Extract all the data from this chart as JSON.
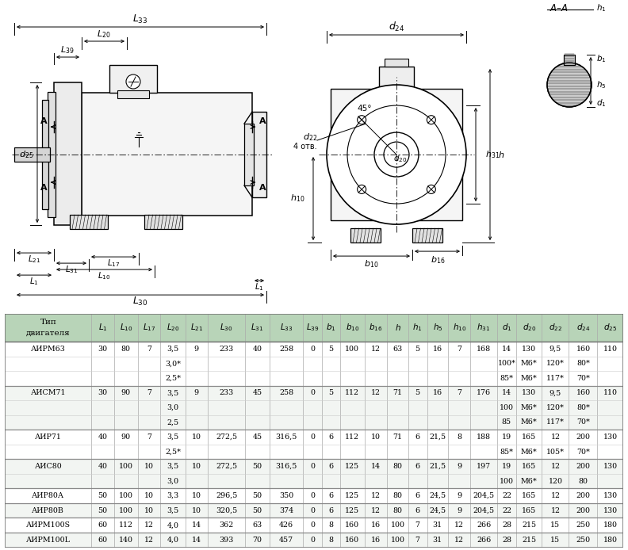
{
  "bg_color": "#ffffff",
  "table_header_bg": "#b8d4b8",
  "table_border_color": "#888888",
  "col_labels": [
    "Тип\nдвигателя",
    "$L_1$",
    "$L_{10}$",
    "$L_{17}$",
    "$L_{20}$",
    "$L_{21}$",
    "$L_{30}$",
    "$L_{31}$",
    "$L_{33}$",
    "$L_{39}$",
    "$b_1$",
    "$b_{10}$",
    "$b_{16}$",
    "$h$",
    "$h_1$",
    "$h_5$",
    "$h_{10}$",
    "$h_{31}$",
    "$d_1$",
    "$d_{20}$",
    "$d_{22}$",
    "$d_{24}$",
    "$d_{25}$"
  ],
  "rows": [
    [
      "АИРМ63",
      "30",
      "80",
      "7",
      "3,5",
      "9",
      "233",
      "40",
      "258",
      "0",
      "5",
      "100",
      "12",
      "63",
      "5",
      "16",
      "7",
      "168",
      "14",
      "130",
      "9,5",
      "160",
      "110"
    ],
    [
      "",
      "",
      "",
      "",
      "3,0*",
      "",
      "",
      "",
      "",
      "",
      "",
      "",
      "",
      "",
      "",
      "",
      "",
      "",
      "100*",
      "M6*",
      "120*",
      "80*"
    ],
    [
      "",
      "",
      "",
      "",
      "2,5*",
      "",
      "",
      "",
      "",
      "",
      "",
      "",
      "",
      "",
      "",
      "",
      "",
      "",
      "85*",
      "M6*",
      "117*",
      "70*"
    ],
    [
      "АИСМ71",
      "30",
      "90",
      "7",
      "3,5",
      "9",
      "233",
      "45",
      "258",
      "0",
      "5",
      "112",
      "12",
      "71",
      "5",
      "16",
      "7",
      "176",
      "14",
      "130",
      "9,5",
      "160",
      "110"
    ],
    [
      "",
      "",
      "",
      "",
      "3,0",
      "",
      "",
      "",
      "",
      "",
      "",
      "",
      "",
      "",
      "",
      "",
      "",
      "",
      "100",
      "M6*",
      "120*",
      "80*"
    ],
    [
      "",
      "",
      "",
      "",
      "2,5",
      "",
      "",
      "",
      "",
      "",
      "",
      "",
      "",
      "",
      "",
      "",
      "",
      "",
      "85",
      "M6*",
      "117*",
      "70*"
    ],
    [
      "АИР71",
      "40",
      "90",
      "7",
      "3,5",
      "10",
      "272,5",
      "45",
      "316,5",
      "0",
      "6",
      "112",
      "10",
      "71",
      "6",
      "21,5",
      "8",
      "188",
      "19",
      "165",
      "12",
      "200",
      "130"
    ],
    [
      "",
      "",
      "",
      "",
      "2,5*",
      "",
      "",
      "",
      "",
      "",
      "",
      "",
      "",
      "",
      "",
      "",
      "",
      "",
      "85*",
      "M6*",
      "105*",
      "70*"
    ],
    [
      "АИС80",
      "40",
      "100",
      "10",
      "3,5",
      "10",
      "272,5",
      "50",
      "316,5",
      "0",
      "6",
      "125",
      "14",
      "80",
      "6",
      "21,5",
      "9",
      "197",
      "19",
      "165",
      "12",
      "200",
      "130"
    ],
    [
      "",
      "",
      "",
      "",
      "3,0",
      "",
      "",
      "",
      "",
      "",
      "",
      "",
      "",
      "",
      "",
      "",
      "",
      "",
      "100",
      "M6*",
      "120",
      "80"
    ],
    [
      "АИР80А",
      "50",
      "100",
      "10",
      "3,3",
      "10",
      "296,5",
      "50",
      "350",
      "0",
      "6",
      "125",
      "12",
      "80",
      "6",
      "24,5",
      "9",
      "204,5",
      "22",
      "165",
      "12",
      "200",
      "130"
    ],
    [
      "АИР80В",
      "50",
      "100",
      "10",
      "3,5",
      "10",
      "320,5",
      "50",
      "374",
      "0",
      "6",
      "125",
      "12",
      "80",
      "6",
      "24,5",
      "9",
      "204,5",
      "22",
      "165",
      "12",
      "200",
      "130"
    ],
    [
      "АИРМ100S",
      "60",
      "112",
      "12",
      "4,0",
      "14",
      "362",
      "63",
      "426",
      "0",
      "8",
      "160",
      "16",
      "100",
      "7",
      "31",
      "12",
      "266",
      "28",
      "215",
      "15",
      "250",
      "180"
    ],
    [
      "АИРМ100L",
      "60",
      "140",
      "12",
      "4,0",
      "14",
      "393",
      "70",
      "457",
      "0",
      "8",
      "160",
      "16",
      "100",
      "7",
      "31",
      "12",
      "266",
      "28",
      "215",
      "15",
      "250",
      "180"
    ]
  ],
  "row_groups": [
    3,
    3,
    2,
    2,
    1,
    1,
    1,
    1
  ]
}
